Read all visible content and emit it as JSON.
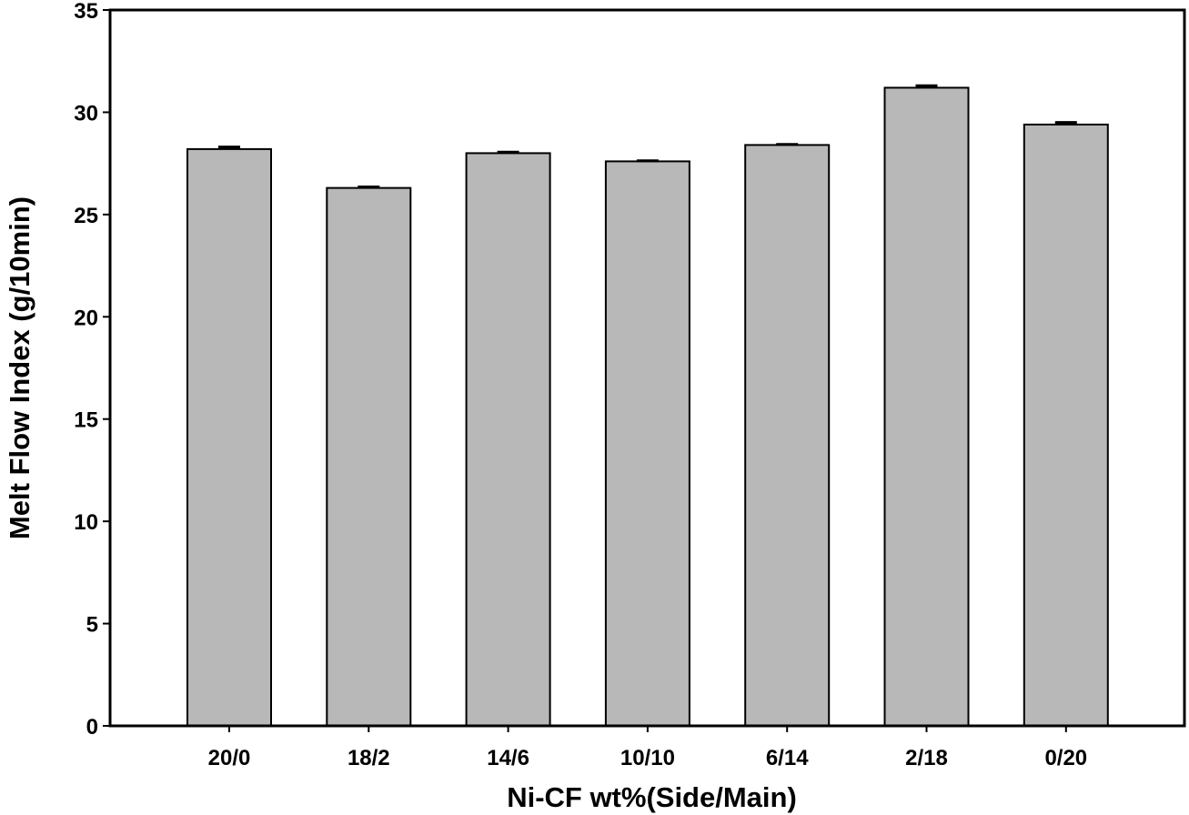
{
  "chart_data": {
    "type": "bar",
    "title": "",
    "xlabel": "Ni-CF wt%(Side/Main)",
    "ylabel": "Melt Flow Index (g/10min)",
    "categories": [
      "20/0",
      "18/2",
      "14/6",
      "10/10",
      "6/14",
      "2/18",
      "0/20"
    ],
    "values": [
      28.2,
      26.3,
      28.0,
      27.6,
      28.4,
      31.2,
      29.4
    ],
    "errors": [
      0.1,
      0.05,
      0.05,
      0.03,
      0.03,
      0.1,
      0.1
    ],
    "ylim": [
      0,
      35
    ],
    "yticks": [
      0,
      5,
      10,
      15,
      20,
      25,
      30,
      35
    ],
    "grid": false,
    "legend": "none",
    "colors": {
      "bar_fill": "#b8b8b8",
      "bar_stroke": "#000000",
      "axis": "#000000"
    }
  }
}
